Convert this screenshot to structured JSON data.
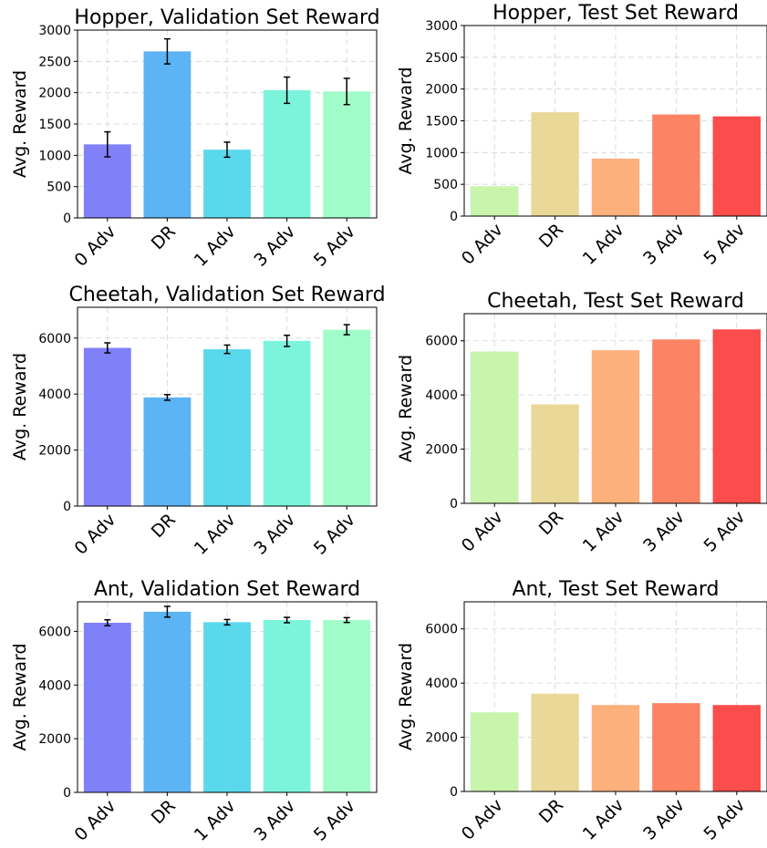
{
  "chart_data": [
    {
      "type": "bar",
      "title": "Hopper, Validation Set Reward",
      "ylabel": "Avg. Reward",
      "categories": [
        "0 Adv",
        "DR",
        "1 Adv",
        "3 Adv",
        "5 Adv"
      ],
      "values": [
        1175,
        2660,
        1090,
        2040,
        2020
      ],
      "errors": [
        200,
        200,
        120,
        210,
        210
      ],
      "yticks": [
        0,
        500,
        1000,
        1500,
        2000,
        2500,
        3000
      ],
      "ylim": [
        0,
        3000
      ],
      "grid": true,
      "colors": [
        "#8080f8",
        "#5cb4f4",
        "#5ad8ec",
        "#7cf4dc",
        "#a0fcc8"
      ]
    },
    {
      "type": "bar",
      "title": "Hopper, Test Set Reward",
      "ylabel": "Avg. Reward",
      "categories": [
        "0 Adv",
        "DR",
        "1 Adv",
        "3 Adv",
        "5 Adv"
      ],
      "values": [
        470,
        1635,
        905,
        1600,
        1570
      ],
      "yticks": [
        0,
        500,
        1000,
        1500,
        2000,
        2500,
        3000
      ],
      "ylim": [
        0,
        3000
      ],
      "grid": true,
      "colors": [
        "#c8f4ac",
        "#ead898",
        "#fcb07c",
        "#fc8464",
        "#fc4c4c"
      ]
    },
    {
      "type": "bar",
      "title": "Cheetah, Validation Set Reward",
      "ylabel": "Avg. Reward",
      "categories": [
        "0 Adv",
        "DR",
        "1 Adv",
        "3 Adv",
        "5 Adv"
      ],
      "values": [
        5650,
        3880,
        5600,
        5900,
        6300
      ],
      "errors": [
        180,
        100,
        150,
        200,
        180
      ],
      "yticks": [
        0,
        2000,
        4000,
        6000
      ],
      "ylim": [
        0,
        7100
      ],
      "grid": true,
      "colors": [
        "#8080f8",
        "#5cb4f4",
        "#5ad8ec",
        "#7cf4dc",
        "#a0fcc8"
      ]
    },
    {
      "type": "bar",
      "title": "Cheetah, Test Set Reward",
      "ylabel": "Avg. Reward",
      "categories": [
        "0 Adv",
        "DR",
        "1 Adv",
        "3 Adv",
        "5 Adv"
      ],
      "values": [
        5600,
        3650,
        5650,
        6050,
        6420
      ],
      "yticks": [
        0,
        2000,
        4000,
        6000
      ],
      "ylim": [
        0,
        7000
      ],
      "grid": true,
      "colors": [
        "#c8f4ac",
        "#ead898",
        "#fcb07c",
        "#fc8464",
        "#fc4c4c"
      ]
    },
    {
      "type": "bar",
      "title": "Ant, Validation Set Reward",
      "ylabel": "Avg. Reward",
      "categories": [
        "0 Adv",
        "DR",
        "1 Adv",
        "3 Adv",
        "5 Adv"
      ],
      "values": [
        6320,
        6730,
        6340,
        6420,
        6420
      ],
      "errors": [
        110,
        200,
        100,
        100,
        90
      ],
      "yticks": [
        0,
        2000,
        4000,
        6000
      ],
      "ylim": [
        0,
        7100
      ],
      "grid": true,
      "colors": [
        "#8080f8",
        "#5cb4f4",
        "#5ad8ec",
        "#7cf4dc",
        "#a0fcc8"
      ]
    },
    {
      "type": "bar",
      "title": "Ant, Test Set Reward",
      "ylabel": "Avg. Reward",
      "categories": [
        "0 Adv",
        "DR",
        "1 Adv",
        "3 Adv",
        "5 Adv"
      ],
      "values": [
        2920,
        3610,
        3190,
        3260,
        3190
      ],
      "yticks": [
        0,
        2000,
        4000,
        6000
      ],
      "ylim": [
        0,
        7000
      ],
      "grid": true,
      "colors": [
        "#c8f4ac",
        "#ead898",
        "#fcb07c",
        "#fc8464",
        "#fc4c4c"
      ]
    }
  ]
}
